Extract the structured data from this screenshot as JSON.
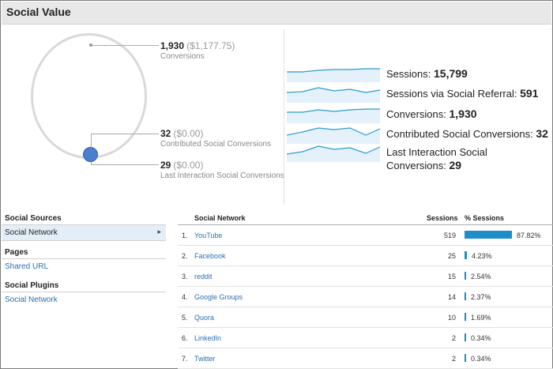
{
  "header": {
    "title": "Social Value"
  },
  "summary": {
    "conversions": {
      "value": "1,930",
      "money": "($1,177.75)",
      "label": "Conversions"
    },
    "contributed": {
      "value": "32",
      "money": "($0.00)",
      "label": "Contributed Social Conversions"
    },
    "last_interaction": {
      "value": "29",
      "money": "($0.00)",
      "label": "Last Interaction Social Conversions"
    }
  },
  "metrics": [
    {
      "label": "Sessions:",
      "value": "15,799"
    },
    {
      "label": "Sessions via Social Referral:",
      "value": "591"
    },
    {
      "label": "Conversions:",
      "value": "1,930"
    },
    {
      "label": "Contributed Social Conversions:",
      "value": "32"
    },
    {
      "label_line1": "Last Interaction Social",
      "label_line2": "Conversions:",
      "value": "29"
    }
  ],
  "nav": {
    "social_sources": {
      "heading": "Social Sources",
      "selected": "Social Network",
      "arrow": "▸"
    },
    "pages": {
      "heading": "Pages",
      "link": "Shared URL"
    },
    "social_plugins": {
      "heading": "Social Plugins",
      "link": "Social Network"
    }
  },
  "table": {
    "columns": {
      "network": "Social Network",
      "sessions": "Sessions",
      "pct": "% Sessions"
    },
    "rows": [
      {
        "rank": "1.",
        "name": "YouTube",
        "sessions": "519",
        "pct": "87.82%",
        "pct_value": 87.82
      },
      {
        "rank": "2.",
        "name": "Facebook",
        "sessions": "25",
        "pct": "4.23%",
        "pct_value": 4.23
      },
      {
        "rank": "3.",
        "name": "reddit",
        "sessions": "15",
        "pct": "2.54%",
        "pct_value": 2.54
      },
      {
        "rank": "4.",
        "name": "Google Groups",
        "sessions": "14",
        "pct": "2.37%",
        "pct_value": 2.37
      },
      {
        "rank": "5.",
        "name": "Quora",
        "sessions": "10",
        "pct": "1.69%",
        "pct_value": 1.69
      },
      {
        "rank": "6.",
        "name": "LinkedIn",
        "sessions": "2",
        "pct": "0.34%",
        "pct_value": 0.34
      },
      {
        "rank": "7.",
        "name": "Twitter",
        "sessions": "2",
        "pct": "0.34%",
        "pct_value": 0.34
      }
    ]
  },
  "colors": {
    "accent": "#1f8dc8",
    "link": "#2a6fb3",
    "dot": "#4a7fd0",
    "spark_line": "#2b9bd1",
    "spark_fill": "#e4f1fa"
  }
}
